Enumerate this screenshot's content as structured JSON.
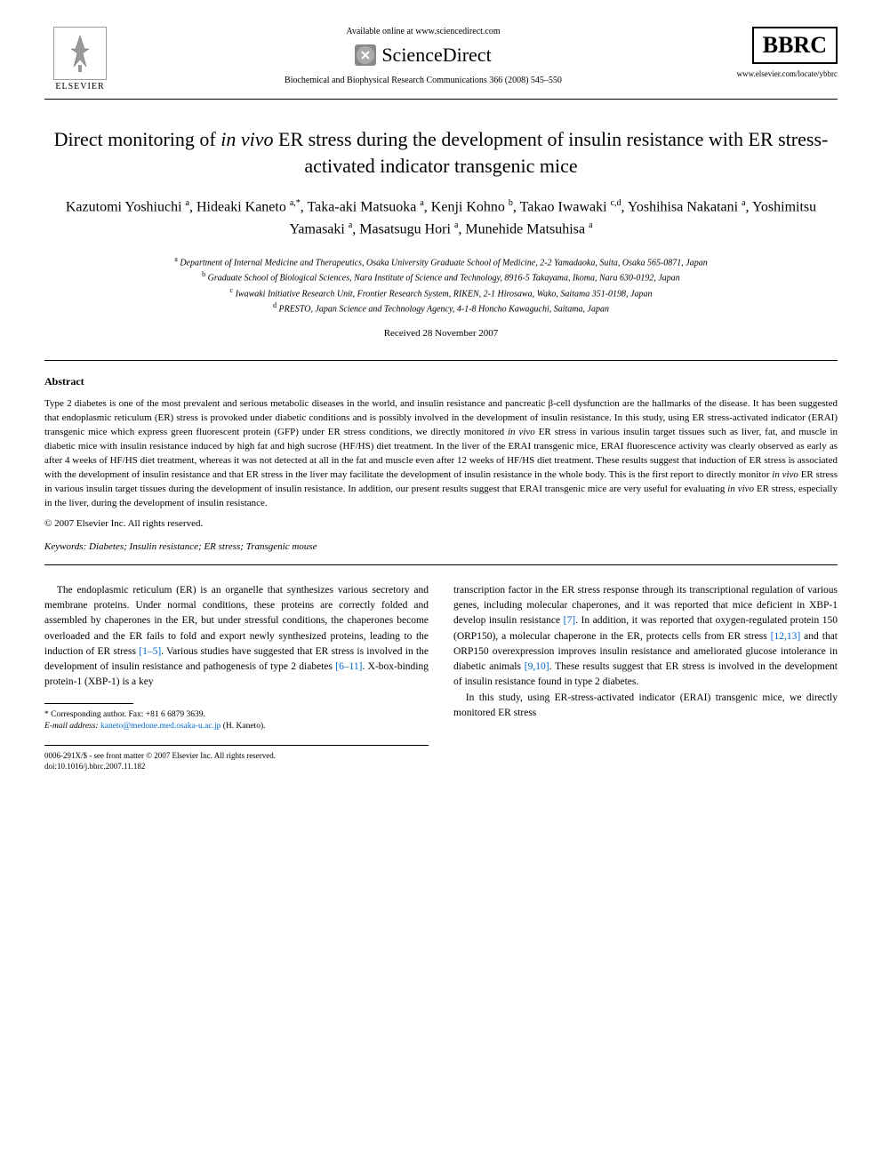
{
  "header": {
    "elsevier_label": "ELSEVIER",
    "available_text": "Available online at www.sciencedirect.com",
    "sciencedirect_label": "ScienceDirect",
    "journal_ref": "Biochemical and Biophysical Research Communications 366 (2008) 545–550",
    "bbrc_label": "BBRC",
    "bbrc_url": "www.elsevier.com/locate/ybbrc"
  },
  "title_html": "Direct monitoring of <em>in vivo</em> ER stress during the development of insulin resistance with ER stress-activated indicator transgenic mice",
  "authors_html": "Kazutomi Yoshiuchi <sup>a</sup>, Hideaki Kaneto <sup>a,*</sup>, Taka-aki Matsuoka <sup>a</sup>, Kenji Kohno <sup>b</sup>, Takao Iwawaki <sup>c,d</sup>, Yoshihisa Nakatani <sup>a</sup>, Yoshimitsu Yamasaki <sup>a</sup>, Masatsugu Hori <sup>a</sup>, Munehide Matsuhisa <sup>a</sup>",
  "affiliations_html": "<sup>a</sup> Department of Internal Medicine and Therapeutics, Osaka University Graduate School of Medicine, 2-2 Yamadaoka, Suita, Osaka 565-0871, Japan<br><sup>b</sup> Graduate School of Biological Sciences, Nara Institute of Science and Technology, 8916-5 Takayama, Ikoma, Nara 630-0192, Japan<br><sup>c</sup> Iwawaki Initiative Research Unit, Frontier Research System, RIKEN, 2-1 Hirosawa, Wako, Saitama 351-0198, Japan<br><sup>d</sup> PRESTO, Japan Science and Technology Agency, 4-1-8 Honcho Kawaguchi, Saitama, Japan",
  "received": "Received 28 November 2007",
  "abstract": {
    "heading": "Abstract",
    "text_html": "Type 2 diabetes is one of the most prevalent and serious metabolic diseases in the world, and insulin resistance and pancreatic β-cell dysfunction are the hallmarks of the disease. It has been suggested that endoplasmic reticulum (ER) stress is provoked under diabetic conditions and is possibly involved in the development of insulin resistance. In this study, using ER stress-activated indicator (ERAI) transgenic mice which express green fluorescent protein (GFP) under ER stress conditions, we directly monitored <em>in vivo</em> ER stress in various insulin target tissues such as liver, fat, and muscle in diabetic mice with insulin resistance induced by high fat and high sucrose (HF/HS) diet treatment. In the liver of the ERAI transgenic mice, ERAI fluorescence activity was clearly observed as early as after 4 weeks of HF/HS diet treatment, whereas it was not detected at all in the fat and muscle even after 12 weeks of HF/HS diet treatment. These results suggest that induction of ER stress is associated with the development of insulin resistance and that ER stress in the liver may facilitate the development of insulin resistance in the whole body. This is the first report to directly monitor <em>in vivo</em> ER stress in various insulin target tissues during the development of insulin resistance. In addition, our present results suggest that ERAI transgenic mice are very useful for evaluating <em>in vivo</em> ER stress, especially in the liver, during the development of insulin resistance.",
    "copyright": "© 2007 Elsevier Inc. All rights reserved."
  },
  "keywords": {
    "label": "Keywords:",
    "text": "Diabetes; Insulin resistance; ER stress; Transgenic mouse"
  },
  "body": {
    "col1_html": "The endoplasmic reticulum (ER) is an organelle that synthesizes various secretory and membrane proteins. Under normal conditions, these proteins are correctly folded and assembled by chaperones in the ER, but under stressful conditions, the chaperones become overloaded and the ER fails to fold and export newly synthesized proteins, leading to the induction of ER stress <a href='#'>[1–5]</a>. Various studies have suggested that ER stress is involved in the development of insulin resistance and pathogenesis of type 2 diabetes <a href='#'>[6–11]</a>. X-box-binding protein-1 (XBP-1) is a key",
    "col2_p1_html": "transcription factor in the ER stress response through its transcriptional regulation of various genes, including molecular chaperones, and it was reported that mice deficient in XBP-1 develop insulin resistance <a href='#'>[7]</a>. In addition, it was reported that oxygen-regulated protein 150 (ORP150), a molecular chaperone in the ER, protects cells from ER stress <a href='#'>[12,13]</a> and that ORP150 overexpression improves insulin resistance and ameliorated glucose intolerance in diabetic animals <a href='#'>[9,10]</a>. These results suggest that ER stress is involved in the development of insulin resistance found in type 2 diabetes.",
    "col2_p2_html": "In this study, using ER-stress-activated indicator (ERAI) transgenic mice, we directly monitored ER stress"
  },
  "footnote": {
    "corr_label": "* Corresponding author. Fax: +81 6 6879 3639.",
    "email_label": "E-mail address:",
    "email": "kaneto@medone.med.osaka-u.ac.jp",
    "email_suffix": "(H. Kaneto)."
  },
  "footer": {
    "line1": "0006-291X/$ - see front matter © 2007 Elsevier Inc. All rights reserved.",
    "line2": "doi:10.1016/j.bbrc.2007.11.182"
  },
  "colors": {
    "link": "#0066cc",
    "text": "#000000",
    "background": "#ffffff"
  },
  "typography": {
    "title_fontsize": 22,
    "authors_fontsize": 16,
    "body_fontsize": 11.5,
    "abstract_fontsize": 11,
    "affiliation_fontsize": 10,
    "footnote_fontsize": 9.5
  }
}
